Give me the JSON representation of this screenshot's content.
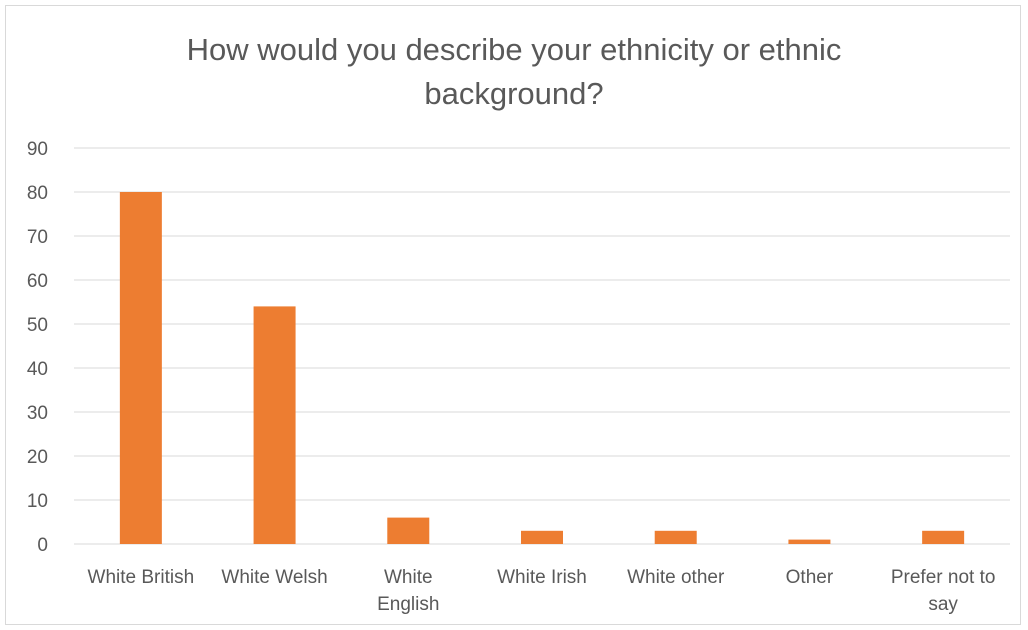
{
  "chart_data": {
    "type": "bar",
    "title": "How would you describe your ethnicity or ethnic background?",
    "categories": [
      "White British",
      "White Welsh",
      "White English",
      "White Irish",
      "White other",
      "Other",
      "Prefer not to say"
    ],
    "category_lines": [
      [
        "White British"
      ],
      [
        "White Welsh"
      ],
      [
        "White",
        "English"
      ],
      [
        "White Irish"
      ],
      [
        "White other"
      ],
      [
        "Other"
      ],
      [
        "Prefer not to",
        "say"
      ]
    ],
    "values": [
      80,
      54,
      6,
      3,
      3,
      1,
      3
    ],
    "ylim": [
      0,
      90
    ],
    "yticks": [
      "0",
      "10",
      "20",
      "30",
      "40",
      "50",
      "60",
      "70",
      "80",
      "90"
    ],
    "grid": true,
    "bar_color": "#ED7D31",
    "grid_color": "#D9D9D9"
  }
}
